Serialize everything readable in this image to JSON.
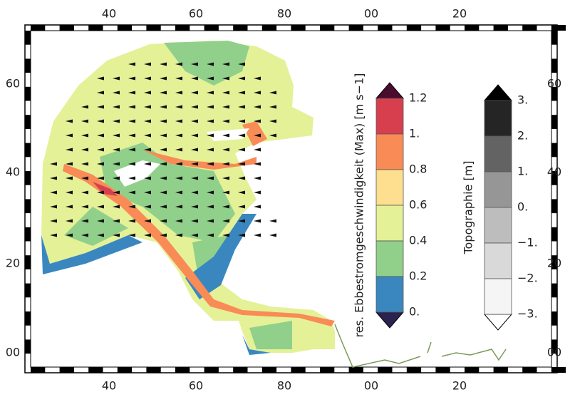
{
  "map": {
    "lon_labels": [
      "40",
      "60",
      "80",
      "00",
      "20"
    ],
    "lat_labels": [
      "60",
      "40",
      "20",
      "00"
    ]
  },
  "colorbars": [
    {
      "title": "res. Ebbestromgeschwindigkeit (Max) [m s−1]",
      "tick_labels": [
        "1.2",
        "1.",
        "0.8",
        "0.6",
        "0.4",
        "0.2",
        "0."
      ]
    },
    {
      "title": "Topographie [m]",
      "tick_labels": [
        "3.",
        "2.",
        "1.",
        "0.",
        "−1.",
        "−2.",
        "−3."
      ]
    }
  ]
}
